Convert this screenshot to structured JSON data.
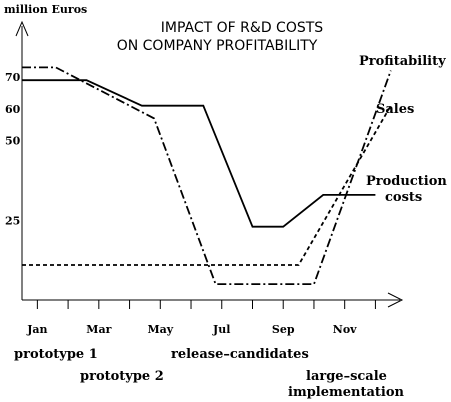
{
  "chart_data": {
    "type": "line",
    "title_lines": [
      "IMPACT OF R&D COSTS",
      "ON COMPANY PROFITABILITY"
    ],
    "ylabel": "million Euros",
    "y_ticks": [
      25,
      50,
      60,
      70
    ],
    "y_tick_labels": [
      "25",
      "50",
      "60",
      "70"
    ],
    "x_ticks": [
      {
        "x": 1,
        "label": "Jan"
      },
      {
        "x": 3,
        "label": "Mar"
      },
      {
        "x": 5,
        "label": "May"
      },
      {
        "x": 7,
        "label": "Jul"
      },
      {
        "x": 9,
        "label": "Sep"
      },
      {
        "x": 11,
        "label": "Nov"
      }
    ],
    "xlim": [
      0.5,
      12.8
    ],
    "ylim": [
      0,
      86
    ],
    "grid": false,
    "series": [
      {
        "name": "Profitability",
        "style": "dashdot",
        "points": [
          [
            0.5,
            73
          ],
          [
            1.6,
            73
          ],
          [
            3.0,
            66
          ],
          [
            4.8,
            57
          ],
          [
            6.8,
            5
          ],
          [
            10.0,
            5
          ],
          [
            12.5,
            72
          ]
        ]
      },
      {
        "name": "Sales",
        "style": "dashed",
        "points": [
          [
            0.5,
            11
          ],
          [
            9.5,
            11
          ],
          [
            12.5,
            61
          ]
        ]
      },
      {
        "name": "Production costs",
        "style": "solid",
        "points": [
          [
            0.5,
            69
          ],
          [
            2.6,
            69
          ],
          [
            4.4,
            61
          ],
          [
            6.4,
            61
          ],
          [
            8.0,
            23
          ],
          [
            9.0,
            23
          ],
          [
            10.3,
            33
          ],
          [
            12.0,
            33
          ]
        ]
      }
    ],
    "series_labels": {
      "profitability": "Profitability",
      "sales": "Sales",
      "production_line1": "Production",
      "production_line2": "costs"
    },
    "milestones": [
      {
        "key": "prototype1",
        "text": "prototype 1"
      },
      {
        "key": "prototype2",
        "text": "prototype 2"
      },
      {
        "key": "release",
        "text": "release–candidates"
      },
      {
        "key": "large1",
        "text": "large–scale"
      },
      {
        "key": "large2",
        "text": "implementation"
      }
    ]
  }
}
